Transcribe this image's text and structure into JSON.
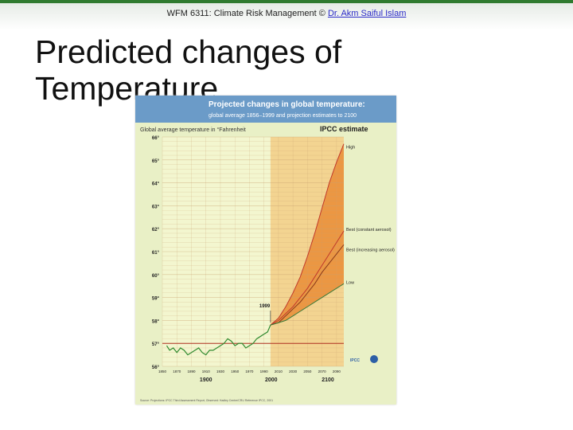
{
  "header": {
    "course": "WFM 6311: Climate Risk Management ©",
    "author_link": "Dr. Akm Saiful Islam"
  },
  "slide": {
    "title": "Predicted changes of Temperature"
  },
  "figure": {
    "colors": {
      "panel_bg": "#e9f0c6",
      "title_bar": "#6b9bc8",
      "plot_bg": "#f3f6cf",
      "projection_fill": "#f2b85e",
      "projection_band": "#e8832a",
      "observed_line": "#2f8a2f",
      "baseline": "#b03020",
      "grid": "#c8a070",
      "high_line": "#c0392b",
      "best_const_line": "#c0392b",
      "best_incr_line": "#8a3a1a",
      "low_line": "#3a7a3a"
    },
    "markers": {
      "year_1999": "1999"
    },
    "eras": [
      "1900",
      "2000",
      "2100"
    ],
    "logo_text": "IPCC",
    "source_note": "Source: Projections: IPCC Third Assessment Report, Observed: Hadley Centre/CRU Reference IPCC, 2001"
  },
  "chart_data": {
    "type": "line",
    "title": "Projected changes in global temperature:",
    "subtitle": "global average 1856–1999 and projection estimates to 2100",
    "ylabel": "Global average temperature in °Fahrenheit",
    "legend_title": "IPCC estimate",
    "xlim": [
      1850,
      2100
    ],
    "ylim": [
      56,
      66
    ],
    "x_tick_labels": [
      "1850",
      "1870",
      "1890",
      "1910",
      "1930",
      "1950",
      "1970",
      "1990",
      "2010",
      "2030",
      "2050",
      "2070",
      "2090"
    ],
    "y_major_labels": [
      "56°",
      "57°",
      "58°",
      "59°",
      "60°",
      "61°",
      "62°",
      "63°",
      "64°",
      "65°",
      "66°"
    ],
    "baseline_y": 57.0,
    "series": [
      {
        "name": "",
        "x": [
          1856,
          1860,
          1865,
          1870,
          1875,
          1880,
          1885,
          1890,
          1895,
          1900,
          1905,
          1910,
          1915,
          1920,
          1925,
          1930,
          1935,
          1940,
          1945,
          1950,
          1955,
          1960,
          1965,
          1970,
          1975,
          1980,
          1985,
          1990,
          1995,
          1999
        ],
        "values": [
          56.9,
          56.7,
          56.8,
          56.6,
          56.8,
          56.7,
          56.5,
          56.6,
          56.7,
          56.8,
          56.6,
          56.5,
          56.7,
          56.7,
          56.8,
          56.9,
          57.0,
          57.2,
          57.1,
          56.9,
          57.0,
          57.0,
          56.8,
          56.9,
          57.0,
          57.2,
          57.3,
          57.4,
          57.5,
          57.8
        ]
      },
      {
        "name": "High",
        "x": [
          1999,
          2010,
          2020,
          2030,
          2040,
          2050,
          2060,
          2070,
          2080,
          2090,
          2100
        ],
        "values": [
          57.8,
          58.1,
          58.6,
          59.2,
          59.9,
          60.8,
          61.8,
          62.9,
          64.0,
          64.9,
          65.7
        ]
      },
      {
        "name": "Best (constant aerosol)",
        "x": [
          1999,
          2010,
          2020,
          2030,
          2040,
          2050,
          2060,
          2070,
          2080,
          2090,
          2100
        ],
        "values": [
          57.8,
          58.0,
          58.3,
          58.6,
          59.0,
          59.4,
          59.9,
          60.4,
          60.9,
          61.4,
          61.9
        ]
      },
      {
        "name": "Best (increasing aerosol)",
        "x": [
          1999,
          2010,
          2020,
          2030,
          2040,
          2050,
          2060,
          2070,
          2080,
          2090,
          2100
        ],
        "values": [
          57.8,
          57.9,
          58.2,
          58.5,
          58.8,
          59.2,
          59.6,
          60.1,
          60.5,
          60.9,
          61.3
        ]
      },
      {
        "name": "Low",
        "x": [
          1999,
          2010,
          2020,
          2030,
          2040,
          2050,
          2060,
          2070,
          2080,
          2090,
          2100
        ],
        "values": [
          57.8,
          57.9,
          58.0,
          58.2,
          58.4,
          58.6,
          58.8,
          59.0,
          59.2,
          59.4,
          59.6
        ]
      }
    ]
  }
}
